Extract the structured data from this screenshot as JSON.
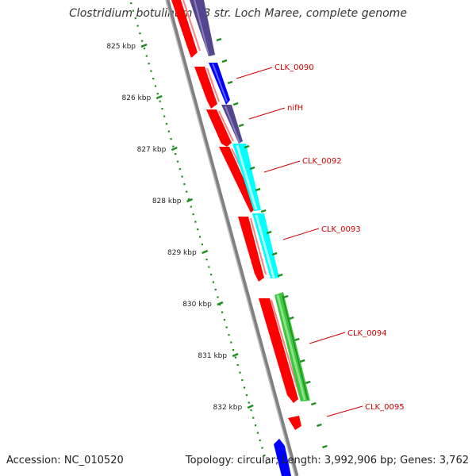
{
  "title": "Clostridium botulinum A3 str. Loch Maree, complete genome",
  "footer": {
    "accession": "Accession: NC_010520",
    "summary": "Topology: circular; Length: 3,992,906 bp; Genes: 3,762"
  },
  "ruler": {
    "ticks": [
      {
        "kbp": 825,
        "label": "825 kbp"
      },
      {
        "kbp": 826,
        "label": "826 kbp"
      },
      {
        "kbp": 827,
        "label": "827 kbp"
      },
      {
        "kbp": 828,
        "label": "828 kbp"
      },
      {
        "kbp": 829,
        "label": "829 kbp"
      },
      {
        "kbp": 830,
        "label": "830 kbp"
      },
      {
        "kbp": 831,
        "label": "831 kbp"
      },
      {
        "kbp": 832,
        "label": "832 kbp"
      }
    ]
  },
  "genes": [
    {
      "label": "CLK_0090"
    },
    {
      "label": "nifH"
    },
    {
      "label": "CLK_0092"
    },
    {
      "label": "CLK_0093"
    },
    {
      "label": "CLK_0094"
    },
    {
      "label": "CLK_0095"
    }
  ],
  "colors": {
    "cds": "#ff0000",
    "gene_blue": "#0000ff",
    "gene_purple": "#55458f",
    "gene_cyan": "#00ffff",
    "gene_green": "#3cc83c",
    "ruler": "#1e8c1e",
    "backbone": "#808080",
    "label": "#cc0000"
  }
}
